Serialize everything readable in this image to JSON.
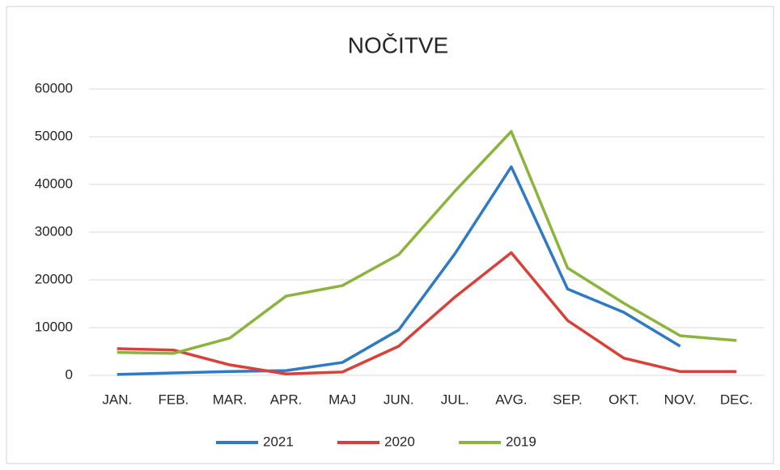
{
  "chart_data": {
    "type": "line",
    "title": "NOČITVE",
    "categories": [
      "JAN.",
      "FEB.",
      "MAR.",
      "APR.",
      "MAJ",
      "JUN.",
      "JUL.",
      "AVG.",
      "SEP.",
      "OKT.",
      "NOV.",
      "DEC."
    ],
    "series": [
      {
        "name": "2021",
        "color": "#2e7bc4",
        "values": [
          200,
          500,
          800,
          1000,
          2700,
          9500,
          25500,
          43700,
          18100,
          13200,
          6100,
          null
        ]
      },
      {
        "name": "2020",
        "color": "#d9403a",
        "values": [
          5600,
          5300,
          2200,
          300,
          700,
          6100,
          16400,
          25700,
          11500,
          3600,
          800,
          800
        ]
      },
      {
        "name": "2019",
        "color": "#8cb43c",
        "values": [
          4800,
          4600,
          7800,
          16600,
          18800,
          25300,
          38600,
          51100,
          22500,
          15100,
          8300,
          7300
        ]
      }
    ],
    "ylim": [
      0,
      60000
    ],
    "yticks": [
      0,
      10000,
      20000,
      30000,
      40000,
      50000,
      60000
    ],
    "grid": true,
    "legend": "bottom"
  }
}
